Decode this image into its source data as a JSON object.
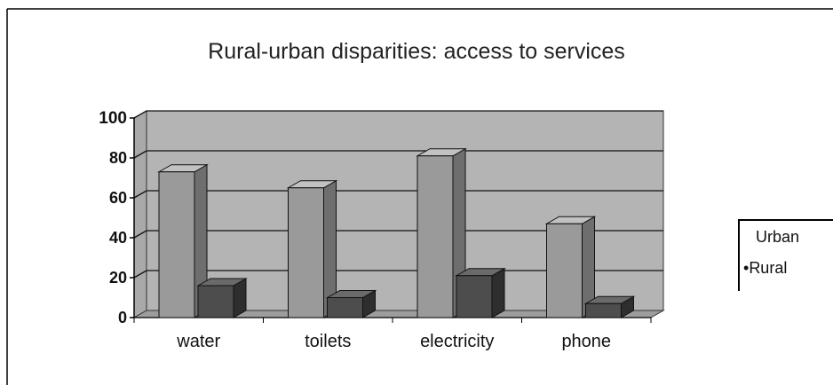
{
  "chart_data": {
    "type": "bar",
    "title": "Rural-urban disparities: access to services",
    "categories": [
      "water",
      "toilets",
      "electricity",
      "phone"
    ],
    "series": [
      {
        "name": "Urban",
        "values": [
          73,
          65,
          81,
          47
        ],
        "color": "#9a9a9a"
      },
      {
        "name": "Rural",
        "values": [
          16,
          10,
          21,
          7
        ],
        "color": "#4d4d4d"
      }
    ],
    "ylim": [
      0,
      100
    ],
    "yticks": [
      "0",
      "20",
      "40",
      "60",
      "80",
      "100"
    ],
    "legend": {
      "position": "right",
      "markers": [
        "",
        "•"
      ]
    },
    "grid": true,
    "three_d": true
  }
}
